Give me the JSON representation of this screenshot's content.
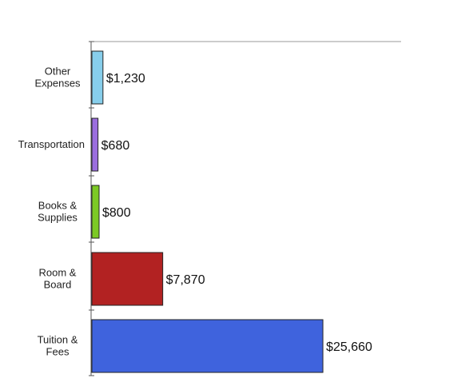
{
  "chart_data": {
    "type": "bar",
    "orientation": "horizontal",
    "categories": [
      [
        "Other",
        "Expenses"
      ],
      [
        "Transportation"
      ],
      [
        "Books &",
        "Supplies"
      ],
      [
        "Room &",
        "Board"
      ],
      [
        "Tuition &",
        "Fees"
      ]
    ],
    "values": [
      1230,
      680,
      800,
      7870,
      25660
    ],
    "value_labels": [
      "$1,230",
      "$680",
      "$800",
      "$7,870",
      "$25,660"
    ],
    "colors": [
      "#87ceeb",
      "#9b6ede",
      "#7cc924",
      "#b22222",
      "#3f63dd"
    ],
    "title": "",
    "xlabel": "",
    "ylabel": "",
    "xlim": [
      0,
      30000
    ],
    "grid": false,
    "legend": "none"
  }
}
